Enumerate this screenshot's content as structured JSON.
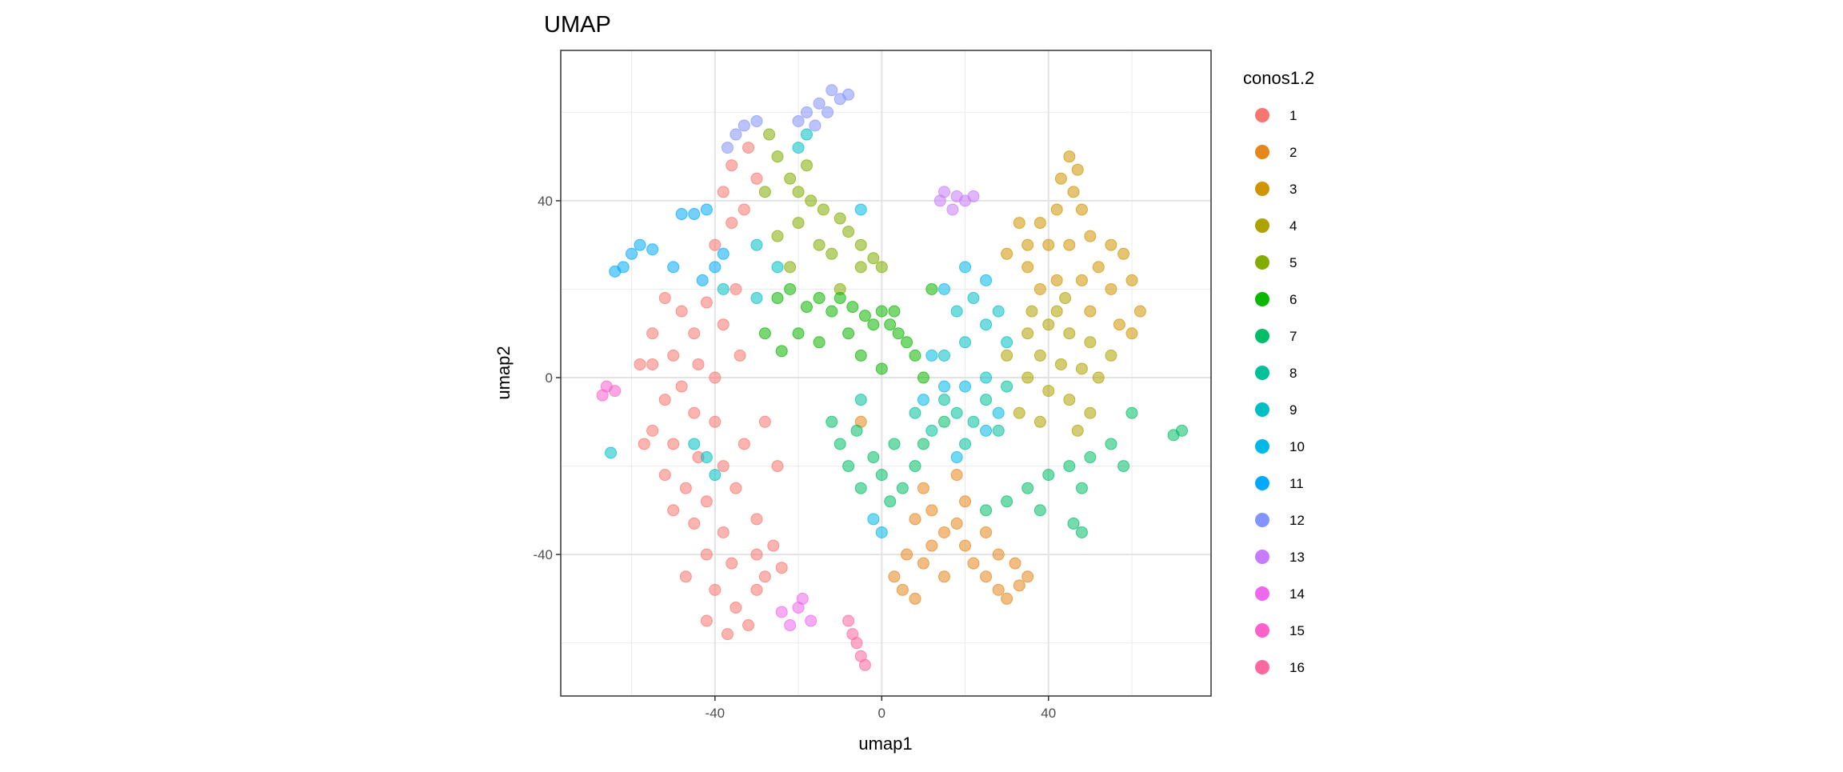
{
  "chart_data": {
    "type": "scatter",
    "title": "UMAP",
    "xlabel": "umap1",
    "ylabel": "umap2",
    "xlim": [
      -77,
      79
    ],
    "ylim": [
      -72,
      74
    ],
    "x_ticks": [
      -40,
      0,
      40
    ],
    "y_ticks": [
      -40,
      0,
      40
    ],
    "x_tick_labels": [
      "-40",
      "0",
      "40"
    ],
    "y_tick_labels": [
      "-40",
      "0",
      "40"
    ],
    "grid": true,
    "legend_title": "conos1.2",
    "legend_position": "right",
    "series": [
      {
        "name": "1",
        "color": "#F8766D",
        "points": [
          [
            -52,
            18
          ],
          [
            -48,
            15
          ],
          [
            -45,
            10
          ],
          [
            -50,
            5
          ],
          [
            -55,
            3
          ],
          [
            -58,
            3
          ],
          [
            -44,
            3
          ],
          [
            -40,
            0
          ],
          [
            -48,
            -2
          ],
          [
            -52,
            -5
          ],
          [
            -45,
            -8
          ],
          [
            -40,
            -10
          ],
          [
            -55,
            -12
          ],
          [
            -50,
            -15
          ],
          [
            -44,
            -18
          ],
          [
            -38,
            -20
          ],
          [
            -52,
            -22
          ],
          [
            -47,
            -25
          ],
          [
            -42,
            -28
          ],
          [
            -35,
            -25
          ],
          [
            -50,
            -30
          ],
          [
            -45,
            -33
          ],
          [
            -38,
            -35
          ],
          [
            -30,
            -32
          ],
          [
            -42,
            -40
          ],
          [
            -36,
            -42
          ],
          [
            -30,
            -40
          ],
          [
            -26,
            -38
          ],
          [
            -40,
            -48
          ],
          [
            -35,
            -52
          ],
          [
            -42,
            -55
          ],
          [
            -37,
            -58
          ],
          [
            -32,
            -56
          ],
          [
            -28,
            -45
          ],
          [
            -24,
            -43
          ],
          [
            -30,
            -48
          ],
          [
            -34,
            5
          ],
          [
            -38,
            12
          ],
          [
            -35,
            20
          ],
          [
            -40,
            30
          ],
          [
            -36,
            35
          ],
          [
            -38,
            42
          ],
          [
            -36,
            48
          ],
          [
            -32,
            52
          ],
          [
            -30,
            45
          ],
          [
            -33,
            38
          ],
          [
            -55,
            10
          ],
          [
            -47,
            -45
          ],
          [
            -28,
            -10
          ],
          [
            -25,
            -20
          ],
          [
            -33,
            -15
          ],
          [
            -57,
            -15
          ],
          [
            -42,
            17
          ]
        ]
      },
      {
        "name": "2",
        "color": "#E7861B",
        "points": [
          [
            3,
            -45
          ],
          [
            5,
            -48
          ],
          [
            8,
            -50
          ],
          [
            10,
            -42
          ],
          [
            12,
            -38
          ],
          [
            8,
            -32
          ],
          [
            10,
            -25
          ],
          [
            12,
            -30
          ],
          [
            15,
            -35
          ],
          [
            18,
            -33
          ],
          [
            20,
            -38
          ],
          [
            22,
            -42
          ],
          [
            25,
            -45
          ],
          [
            28,
            -48
          ],
          [
            30,
            -50
          ],
          [
            33,
            -47
          ],
          [
            32,
            -42
          ],
          [
            28,
            -40
          ],
          [
            20,
            -28
          ],
          [
            18,
            -22
          ],
          [
            15,
            -45
          ],
          [
            6,
            -40
          ],
          [
            25,
            -35
          ],
          [
            -5,
            -10
          ],
          [
            35,
            -45
          ]
        ]
      },
      {
        "name": "3",
        "color": "#D09400",
        "points": [
          [
            45,
            50
          ],
          [
            43,
            45
          ],
          [
            47,
            47
          ],
          [
            42,
            38
          ],
          [
            48,
            38
          ],
          [
            38,
            35
          ],
          [
            35,
            30
          ],
          [
            40,
            30
          ],
          [
            45,
            30
          ],
          [
            50,
            32
          ],
          [
            55,
            30
          ],
          [
            58,
            28
          ],
          [
            60,
            22
          ],
          [
            62,
            15
          ],
          [
            60,
            10
          ],
          [
            52,
            25
          ],
          [
            48,
            22
          ],
          [
            42,
            22
          ],
          [
            35,
            25
          ],
          [
            30,
            28
          ],
          [
            38,
            20
          ],
          [
            55,
            20
          ],
          [
            50,
            15
          ],
          [
            46,
            42
          ],
          [
            33,
            35
          ],
          [
            57,
            12
          ]
        ]
      },
      {
        "name": "4",
        "color": "#AEA200",
        "points": [
          [
            35,
            10
          ],
          [
            40,
            12
          ],
          [
            45,
            10
          ],
          [
            50,
            8
          ],
          [
            38,
            5
          ],
          [
            43,
            3
          ],
          [
            48,
            2
          ],
          [
            52,
            0
          ],
          [
            35,
            0
          ],
          [
            40,
            -3
          ],
          [
            45,
            -5
          ],
          [
            50,
            -8
          ],
          [
            38,
            -10
          ],
          [
            33,
            -8
          ],
          [
            42,
            15
          ],
          [
            55,
            5
          ],
          [
            47,
            -12
          ],
          [
            30,
            5
          ],
          [
            36,
            15
          ],
          [
            44,
            18
          ]
        ]
      },
      {
        "name": "5",
        "color": "#82AD00",
        "points": [
          [
            -27,
            55
          ],
          [
            -25,
            50
          ],
          [
            -22,
            45
          ],
          [
            -20,
            42
          ],
          [
            -17,
            40
          ],
          [
            -14,
            38
          ],
          [
            -10,
            36
          ],
          [
            -8,
            33
          ],
          [
            -5,
            30
          ],
          [
            -2,
            27
          ],
          [
            0,
            25
          ],
          [
            -20,
            35
          ],
          [
            -15,
            30
          ],
          [
            -12,
            28
          ],
          [
            -25,
            32
          ],
          [
            -28,
            42
          ],
          [
            -18,
            48
          ],
          [
            -5,
            25
          ],
          [
            -22,
            25
          ],
          [
            -10,
            20
          ]
        ]
      },
      {
        "name": "6",
        "color": "#0CB702",
        "points": [
          [
            -25,
            18
          ],
          [
            -22,
            20
          ],
          [
            -18,
            16
          ],
          [
            -15,
            18
          ],
          [
            -12,
            15
          ],
          [
            -10,
            18
          ],
          [
            -7,
            16
          ],
          [
            -4,
            14
          ],
          [
            -2,
            12
          ],
          [
            0,
            15
          ],
          [
            2,
            12
          ],
          [
            4,
            10
          ],
          [
            6,
            8
          ],
          [
            8,
            5
          ],
          [
            -20,
            10
          ],
          [
            -15,
            8
          ],
          [
            -8,
            10
          ],
          [
            -24,
            6
          ],
          [
            3,
            15
          ],
          [
            10,
            0
          ],
          [
            -5,
            5
          ],
          [
            12,
            20
          ],
          [
            -28,
            10
          ],
          [
            0,
            2
          ]
        ]
      },
      {
        "name": "7",
        "color": "#00BE67",
        "points": [
          [
            -10,
            -15
          ],
          [
            -8,
            -20
          ],
          [
            -5,
            -25
          ],
          [
            -2,
            -18
          ],
          [
            0,
            -22
          ],
          [
            3,
            -15
          ],
          [
            5,
            -25
          ],
          [
            8,
            -20
          ],
          [
            -12,
            -10
          ],
          [
            -6,
            -12
          ],
          [
            2,
            -28
          ],
          [
            10,
            -15
          ],
          [
            30,
            -28
          ],
          [
            35,
            -25
          ],
          [
            40,
            -22
          ],
          [
            45,
            -20
          ],
          [
            50,
            -18
          ],
          [
            55,
            -15
          ],
          [
            58,
            -20
          ],
          [
            48,
            -25
          ],
          [
            38,
            -30
          ],
          [
            25,
            -30
          ],
          [
            60,
            -8
          ],
          [
            70,
            -13
          ],
          [
            72,
            -12
          ],
          [
            46,
            -33
          ],
          [
            48,
            -35
          ],
          [
            15,
            -10
          ]
        ]
      },
      {
        "name": "8",
        "color": "#00C19A",
        "points": [
          [
            15,
            -5
          ],
          [
            18,
            -8
          ],
          [
            22,
            -10
          ],
          [
            25,
            -5
          ],
          [
            20,
            -15
          ],
          [
            28,
            -12
          ],
          [
            12,
            -12
          ],
          [
            30,
            -2
          ],
          [
            -5,
            -5
          ],
          [
            8,
            -8
          ]
        ]
      },
      {
        "name": "9",
        "color": "#00BFC4",
        "points": [
          [
            15,
            5
          ],
          [
            20,
            8
          ],
          [
            25,
            12
          ],
          [
            28,
            15
          ],
          [
            22,
            18
          ],
          [
            18,
            15
          ],
          [
            30,
            8
          ],
          [
            25,
            0
          ],
          [
            -42,
            -18
          ],
          [
            -45,
            -15
          ],
          [
            -40,
            -22
          ],
          [
            -38,
            20
          ],
          [
            -30,
            18
          ],
          [
            -25,
            25
          ],
          [
            -20,
            52
          ],
          [
            -18,
            55
          ],
          [
            -65,
            -17
          ],
          [
            -30,
            30
          ]
        ]
      },
      {
        "name": "10",
        "color": "#00B8E7",
        "points": [
          [
            12,
            5
          ],
          [
            15,
            -2
          ],
          [
            20,
            -2
          ],
          [
            25,
            -12
          ],
          [
            28,
            -8
          ],
          [
            18,
            -18
          ],
          [
            10,
            -5
          ],
          [
            -2,
            -32
          ],
          [
            0,
            -35
          ],
          [
            15,
            20
          ],
          [
            20,
            25
          ],
          [
            25,
            22
          ],
          [
            -5,
            38
          ]
        ]
      },
      {
        "name": "11",
        "color": "#00A9FF",
        "points": [
          [
            -62,
            25
          ],
          [
            -60,
            28
          ],
          [
            -58,
            30
          ],
          [
            -55,
            29
          ],
          [
            -64,
            24
          ],
          [
            -45,
            37
          ],
          [
            -48,
            37
          ],
          [
            -42,
            38
          ],
          [
            -40,
            25
          ],
          [
            -43,
            22
          ],
          [
            -38,
            28
          ],
          [
            -50,
            25
          ]
        ]
      },
      {
        "name": "12",
        "color": "#8494FF",
        "points": [
          [
            -15,
            62
          ],
          [
            -12,
            65
          ],
          [
            -10,
            63
          ],
          [
            -18,
            60
          ],
          [
            -20,
            58
          ],
          [
            -13,
            60
          ],
          [
            -8,
            64
          ],
          [
            -16,
            57
          ],
          [
            -33,
            57
          ],
          [
            -35,
            55
          ],
          [
            -30,
            58
          ],
          [
            -37,
            52
          ]
        ]
      },
      {
        "name": "13",
        "color": "#C77CFF",
        "points": [
          [
            15,
            42
          ],
          [
            18,
            41
          ],
          [
            20,
            40
          ],
          [
            17,
            38
          ],
          [
            14,
            40
          ],
          [
            22,
            41
          ]
        ]
      },
      {
        "name": "14",
        "color": "#ED68ED",
        "points": [
          [
            -24,
            -53
          ],
          [
            -20,
            -52
          ],
          [
            -17,
            -55
          ],
          [
            -22,
            -56
          ],
          [
            -19,
            -50
          ]
        ]
      },
      {
        "name": "15",
        "color": "#FF61CC",
        "points": [
          [
            -66,
            -2
          ],
          [
            -67,
            -4
          ],
          [
            -64,
            -3
          ]
        ]
      },
      {
        "name": "16",
        "color": "#FF68A1",
        "points": [
          [
            -5,
            -63
          ],
          [
            -4,
            -65
          ],
          [
            -6,
            -60
          ],
          [
            -8,
            -55
          ],
          [
            -7,
            -58
          ]
        ]
      }
    ]
  }
}
